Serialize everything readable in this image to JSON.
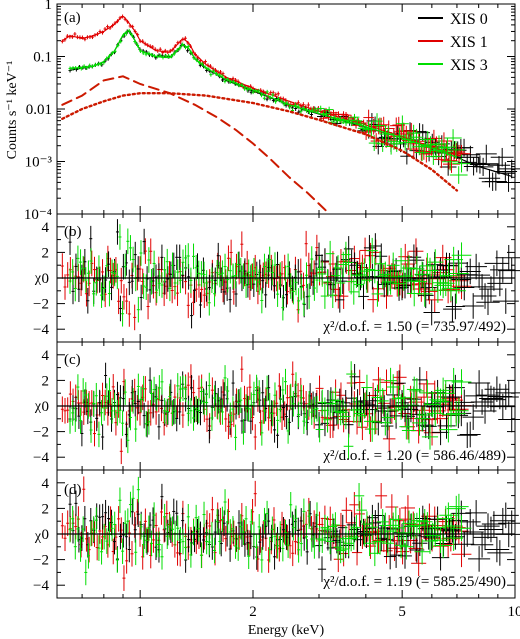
{
  "chart_data": [
    {
      "panel_label": "(a)",
      "type": "line",
      "ylabel": "Counts s⁻¹ keV⁻¹",
      "yscale": "log",
      "xscale": "log",
      "xlim": [
        0.6,
        10
      ],
      "ylim": [
        0.0001,
        1
      ],
      "y_ticks": [
        "1",
        "0.1",
        "0.01",
        "10⁻³",
        "10⁻⁴"
      ],
      "legend": {
        "position": "top-right",
        "entries": [
          "XIS 0",
          "XIS 1",
          "XIS 3"
        ]
      },
      "colors": {
        "XIS 0": "#000000",
        "XIS 1": "#e00000",
        "XIS 3": "#00dd00",
        "model_component": "#cc1a00"
      },
      "series": [
        {
          "name": "XIS 0",
          "x": [
            0.65,
            0.7,
            0.75,
            0.8,
            0.85,
            0.9,
            0.93,
            0.97,
            1.0,
            1.1,
            1.2,
            1.3,
            1.35,
            1.4,
            1.5,
            1.7,
            2.0,
            2.5,
            3.0,
            4.0,
            5.0,
            6.0,
            7.0,
            8.0,
            10.0
          ],
          "y": [
            0.055,
            0.06,
            0.065,
            0.08,
            0.12,
            0.25,
            0.32,
            0.2,
            0.13,
            0.1,
            0.095,
            0.17,
            0.14,
            0.09,
            0.06,
            0.035,
            0.022,
            0.012,
            0.008,
            0.0045,
            0.0028,
            0.0018,
            0.0012,
            0.0008,
            0.0005
          ]
        },
        {
          "name": "XIS 1",
          "x": [
            0.62,
            0.65,
            0.7,
            0.75,
            0.8,
            0.85,
            0.9,
            0.93,
            0.97,
            1.0,
            1.1,
            1.2,
            1.3,
            1.35,
            1.4,
            1.5,
            1.7,
            2.0,
            2.5,
            3.0,
            4.0,
            5.0,
            6.0,
            7.0
          ],
          "y": [
            0.2,
            0.25,
            0.22,
            0.25,
            0.3,
            0.4,
            0.6,
            0.45,
            0.3,
            0.2,
            0.13,
            0.12,
            0.22,
            0.18,
            0.11,
            0.07,
            0.04,
            0.025,
            0.014,
            0.009,
            0.005,
            0.003,
            0.0019,
            0.0013
          ]
        },
        {
          "name": "XIS 3",
          "x": [
            0.65,
            0.7,
            0.75,
            0.8,
            0.85,
            0.9,
            0.93,
            0.97,
            1.0,
            1.1,
            1.2,
            1.3,
            1.35,
            1.4,
            1.5,
            1.7,
            2.0,
            2.5,
            3.0,
            4.0,
            5.0,
            6.0,
            7.0
          ],
          "y": [
            0.06,
            0.062,
            0.065,
            0.08,
            0.12,
            0.26,
            0.32,
            0.2,
            0.13,
            0.1,
            0.095,
            0.17,
            0.14,
            0.09,
            0.06,
            0.036,
            0.023,
            0.012,
            0.0082,
            0.0046,
            0.0028,
            0.0018,
            0.0012
          ]
        },
        {
          "name": "",
          "style": "long-dash",
          "x": [
            0.62,
            0.7,
            0.8,
            0.9,
            1.0,
            1.2,
            1.4,
            1.6,
            1.8,
            2.0,
            2.2,
            2.5,
            2.8,
            3.2
          ],
          "y": [
            0.012,
            0.018,
            0.035,
            0.042,
            0.03,
            0.02,
            0.012,
            0.007,
            0.004,
            0.0022,
            0.0012,
            0.0005,
            0.00025,
            0.0001
          ]
        },
        {
          "name": "",
          "style": "dotted",
          "x": [
            0.62,
            0.7,
            0.8,
            0.9,
            1.0,
            1.2,
            1.5,
            2.0,
            2.5,
            3.0,
            4.0,
            5.0,
            6.0,
            7.0
          ],
          "y": [
            0.0065,
            0.01,
            0.014,
            0.018,
            0.02,
            0.02,
            0.018,
            0.013,
            0.009,
            0.0062,
            0.0033,
            0.0016,
            0.0007,
            0.00028
          ]
        }
      ]
    },
    {
      "panel_label": "(b)",
      "type": "scatter",
      "ylabel": "χ",
      "ylim": [
        -5,
        5
      ],
      "y_ticks": [
        4,
        2,
        0,
        -2,
        -4
      ],
      "annotation": "χ²/d.o.f. = 1.50 (= 735.97/492)"
    },
    {
      "panel_label": "(c)",
      "type": "scatter",
      "ylabel": "χ",
      "ylim": [
        -5,
        5
      ],
      "y_ticks": [
        4,
        2,
        0,
        -2,
        -4
      ],
      "annotation": "χ²/d.o.f. = 1.20 (= 586.46/489)"
    },
    {
      "panel_label": "(d)",
      "type": "scatter",
      "ylabel": "χ",
      "ylim": [
        -5,
        5
      ],
      "y_ticks": [
        4,
        2,
        0,
        -2,
        -4
      ],
      "annotation": "χ²/d.o.f. = 1.19 (= 585.25/490)",
      "xlabel": "Energy (keV)",
      "x_ticks": [
        1,
        2,
        5,
        10
      ]
    }
  ]
}
